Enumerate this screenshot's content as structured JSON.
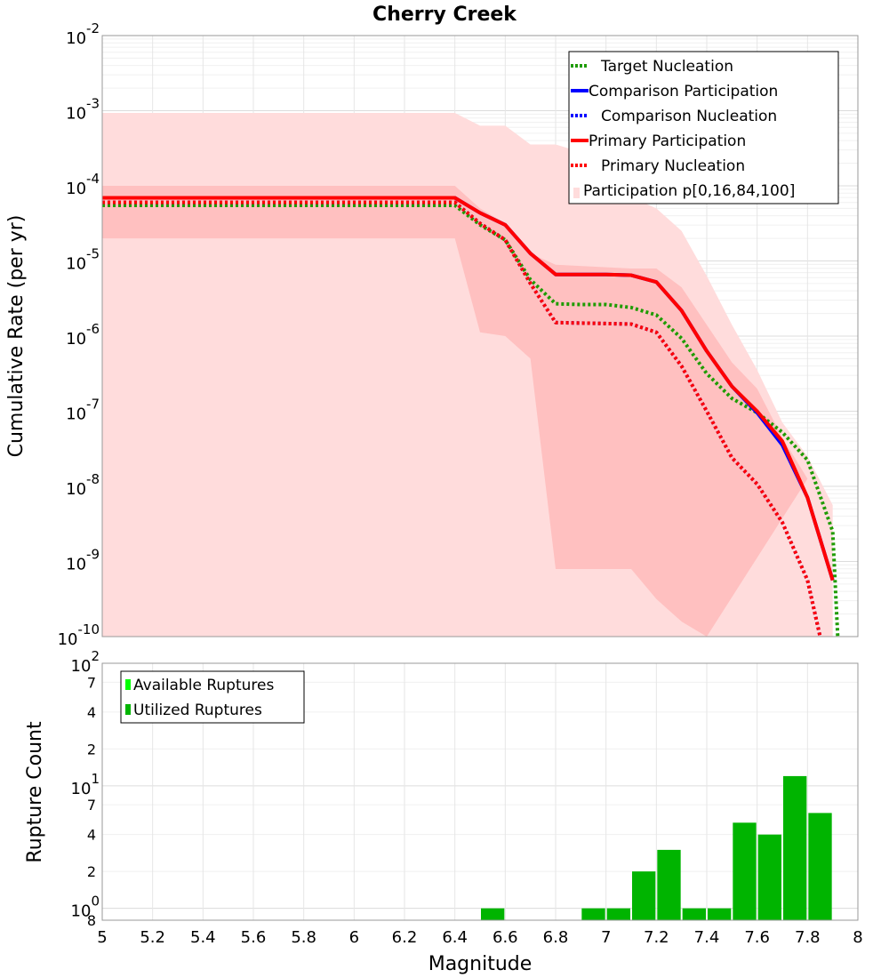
{
  "chart_data": {
    "type": "line",
    "title": "Cherry Creek",
    "xlabel": "Magnitude",
    "x_ticks": [
      "5",
      "5.2",
      "5.4",
      "5.6",
      "5.8",
      "6",
      "6.2",
      "6.4",
      "6.6",
      "6.8",
      "7",
      "7.2",
      "7.4",
      "7.6",
      "7.8",
      "8"
    ],
    "xlim": [
      5,
      8
    ],
    "panels": [
      {
        "name": "rate",
        "ylabel": "Cumulative Rate (per yr)",
        "yscale": "log",
        "ylim_exp": [
          -10,
          -2
        ],
        "y_ticks": [
          {
            "exp": -2,
            "base": "10",
            "sup": "-2"
          },
          {
            "exp": -3,
            "base": "10",
            "sup": "-3"
          },
          {
            "exp": -4,
            "base": "10",
            "sup": "-4"
          },
          {
            "exp": -5,
            "base": "10",
            "sup": "-5"
          },
          {
            "exp": -6,
            "base": "10",
            "sup": "-6"
          },
          {
            "exp": -7,
            "base": "10",
            "sup": "-7"
          },
          {
            "exp": -8,
            "base": "10",
            "sup": "-8"
          },
          {
            "exp": -9,
            "base": "10",
            "sup": "-9"
          },
          {
            "exp": -10,
            "base": "10",
            "sup": "-10"
          }
        ],
        "bands": [
          {
            "name": "Participation p[0,100]",
            "color": "#ffdcdc",
            "lower": [
              [
                5,
                -10
              ],
              [
                8,
                -10
              ]
            ],
            "upper": [
              [
                5,
                -3.03
              ],
              [
                6.4,
                -3.03
              ],
              [
                6.5,
                -3.2
              ],
              [
                6.6,
                -3.2
              ],
              [
                6.7,
                -3.45
              ],
              [
                6.8,
                -3.45
              ],
              [
                6.9,
                -3.55
              ],
              [
                7.0,
                -3.7
              ],
              [
                7.1,
                -4.15
              ],
              [
                7.2,
                -4.3
              ],
              [
                7.3,
                -4.6
              ],
              [
                7.4,
                -5.2
              ],
              [
                7.5,
                -5.85
              ],
              [
                7.6,
                -6.45
              ],
              [
                7.7,
                -7.15
              ],
              [
                7.8,
                -7.6
              ],
              [
                7.9,
                -8.25
              ],
              [
                7.9,
                -10
              ]
            ]
          },
          {
            "name": "Participation p[16,84]",
            "color": "#ffc0c0",
            "lower": [
              [
                5,
                -4.7
              ],
              [
                6.4,
                -4.7
              ],
              [
                6.5,
                -5.95
              ],
              [
                6.6,
                -6.0
              ],
              [
                6.7,
                -6.3
              ],
              [
                6.8,
                -9.1
              ],
              [
                7.1,
                -9.1
              ],
              [
                7.2,
                -9.5
              ],
              [
                7.3,
                -9.8
              ],
              [
                7.4,
                -10
              ]
            ],
            "upper": [
              [
                5,
                -4.0
              ],
              [
                6.4,
                -4.0
              ],
              [
                6.5,
                -4.3
              ],
              [
                6.6,
                -4.5
              ],
              [
                6.7,
                -4.9
              ],
              [
                6.8,
                -5.05
              ],
              [
                7.1,
                -5.1
              ],
              [
                7.2,
                -5.1
              ],
              [
                7.3,
                -5.35
              ],
              [
                7.4,
                -5.85
              ],
              [
                7.5,
                -6.35
              ],
              [
                7.6,
                -6.7
              ],
              [
                7.7,
                -7.35
              ],
              [
                7.8,
                -7.9
              ]
            ]
          }
        ],
        "series": [
          {
            "name": "Target Nucleation",
            "color": "#1e9b00",
            "dash": true,
            "width": 4,
            "points": [
              [
                5,
                -4.26
              ],
              [
                6.4,
                -4.26
              ],
              [
                6.5,
                -4.52
              ],
              [
                6.6,
                -4.72
              ],
              [
                6.7,
                -5.25
              ],
              [
                6.8,
                -5.57
              ],
              [
                6.9,
                -5.58
              ],
              [
                7.0,
                -5.58
              ],
              [
                7.1,
                -5.62
              ],
              [
                7.2,
                -5.72
              ],
              [
                7.3,
                -6.03
              ],
              [
                7.4,
                -6.5
              ],
              [
                7.5,
                -6.83
              ],
              [
                7.6,
                -7.02
              ],
              [
                7.7,
                -7.28
              ],
              [
                7.8,
                -7.65
              ],
              [
                7.9,
                -8.6
              ],
              [
                7.92,
                -10
              ]
            ]
          },
          {
            "name": "Comparison Participation",
            "color": "#0000ff",
            "dash": false,
            "width": 4,
            "points": [
              [
                5,
                -4.16
              ],
              [
                6.4,
                -4.16
              ],
              [
                6.5,
                -4.36
              ],
              [
                6.6,
                -4.52
              ],
              [
                6.7,
                -4.9
              ],
              [
                6.8,
                -5.18
              ],
              [
                7.0,
                -5.18
              ],
              [
                7.1,
                -5.19
              ],
              [
                7.2,
                -5.28
              ],
              [
                7.3,
                -5.66
              ],
              [
                7.4,
                -6.2
              ],
              [
                7.5,
                -6.67
              ],
              [
                7.6,
                -7.02
              ],
              [
                7.7,
                -7.45
              ],
              [
                7.8,
                -8.15
              ],
              [
                7.9,
                -9.25
              ]
            ]
          },
          {
            "name": "Comparison Nucleation",
            "color": "#0000ff",
            "dash": true,
            "width": 4,
            "points": [
              [
                5,
                -4.22
              ],
              [
                6.4,
                -4.22
              ],
              [
                6.5,
                -4.5
              ],
              [
                6.6,
                -4.72
              ],
              [
                6.7,
                -5.3
              ],
              [
                6.8,
                -5.82
              ],
              [
                7.1,
                -5.84
              ],
              [
                7.2,
                -5.95
              ],
              [
                7.3,
                -6.4
              ],
              [
                7.4,
                -7.0
              ],
              [
                7.5,
                -7.62
              ],
              [
                7.6,
                -7.97
              ],
              [
                7.7,
                -8.48
              ],
              [
                7.8,
                -9.25
              ],
              [
                7.85,
                -10
              ]
            ]
          },
          {
            "name": "Primary Participation",
            "color": "#ff0000",
            "dash": false,
            "width": 4,
            "points": [
              [
                5,
                -4.16
              ],
              [
                6.4,
                -4.16
              ],
              [
                6.5,
                -4.36
              ],
              [
                6.6,
                -4.52
              ],
              [
                6.7,
                -4.9
              ],
              [
                6.8,
                -5.18
              ],
              [
                7.0,
                -5.18
              ],
              [
                7.1,
                -5.19
              ],
              [
                7.2,
                -5.28
              ],
              [
                7.3,
                -5.66
              ],
              [
                7.4,
                -6.2
              ],
              [
                7.5,
                -6.67
              ],
              [
                7.6,
                -7.0
              ],
              [
                7.7,
                -7.4
              ],
              [
                7.8,
                -8.15
              ],
              [
                7.9,
                -9.25
              ]
            ]
          },
          {
            "name": "Primary Nucleation",
            "color": "#ff0000",
            "dash": true,
            "width": 4,
            "points": [
              [
                5,
                -4.22
              ],
              [
                6.4,
                -4.22
              ],
              [
                6.5,
                -4.5
              ],
              [
                6.6,
                -4.72
              ],
              [
                6.7,
                -5.3
              ],
              [
                6.8,
                -5.82
              ],
              [
                7.1,
                -5.84
              ],
              [
                7.2,
                -5.95
              ],
              [
                7.3,
                -6.4
              ],
              [
                7.4,
                -7.0
              ],
              [
                7.5,
                -7.62
              ],
              [
                7.6,
                -7.97
              ],
              [
                7.7,
                -8.48
              ],
              [
                7.8,
                -9.25
              ],
              [
                7.85,
                -10
              ]
            ]
          }
        ],
        "legend_position": "top-right",
        "legend": [
          {
            "label": "Target Nucleation",
            "color": "#1e9b00",
            "style": "dotted"
          },
          {
            "label": "Comparison Participation",
            "color": "#0000ff",
            "style": "solid"
          },
          {
            "label": "Comparison Nucleation",
            "color": "#0000ff",
            "style": "dotted"
          },
          {
            "label": "Primary Participation",
            "color": "#ff0000",
            "style": "solid"
          },
          {
            "label": "Primary Nucleation",
            "color": "#ff0000",
            "style": "dotted"
          },
          {
            "label": "Participation p[0,16,84,100]",
            "color": "#ffdcdc",
            "style": "box"
          }
        ]
      },
      {
        "name": "counts",
        "type": "bar",
        "ylabel": "Rupture Count",
        "yscale": "log",
        "ylim": [
          0.8,
          100
        ],
        "major_ticks": [
          {
            "value": 1,
            "base": "10",
            "sup": "0"
          },
          {
            "value": 10,
            "base": "10",
            "sup": "1"
          },
          {
            "value": 100,
            "base": "10",
            "sup": "2"
          }
        ],
        "minor_ticks": [
          {
            "value": 0.8,
            "label": "8"
          },
          {
            "value": 2,
            "label": "2"
          },
          {
            "value": 4,
            "label": "4"
          },
          {
            "value": 7,
            "label": "7"
          },
          {
            "value": 20,
            "label": "2"
          },
          {
            "value": 40,
            "label": "4"
          },
          {
            "value": 70,
            "label": "7"
          }
        ],
        "series": [
          {
            "name": "Utilized Ruptures",
            "color": "#00b400",
            "bin_width": 0.1,
            "bars": [
              {
                "x": 6.55,
                "value": 1
              },
              {
                "x": 6.95,
                "value": 1
              },
              {
                "x": 7.05,
                "value": 1
              },
              {
                "x": 7.15,
                "value": 2
              },
              {
                "x": 7.25,
                "value": 3
              },
              {
                "x": 7.35,
                "value": 1
              },
              {
                "x": 7.45,
                "value": 1
              },
              {
                "x": 7.55,
                "value": 5
              },
              {
                "x": 7.65,
                "value": 4
              },
              {
                "x": 7.75,
                "value": 12
              },
              {
                "x": 7.85,
                "value": 6
              }
            ]
          }
        ],
        "legend_position": "top-left",
        "legend": [
          {
            "label": "Available Ruptures",
            "color": "#00ff00"
          },
          {
            "label": "Utilized Ruptures",
            "color": "#00b400"
          }
        ]
      }
    ]
  }
}
